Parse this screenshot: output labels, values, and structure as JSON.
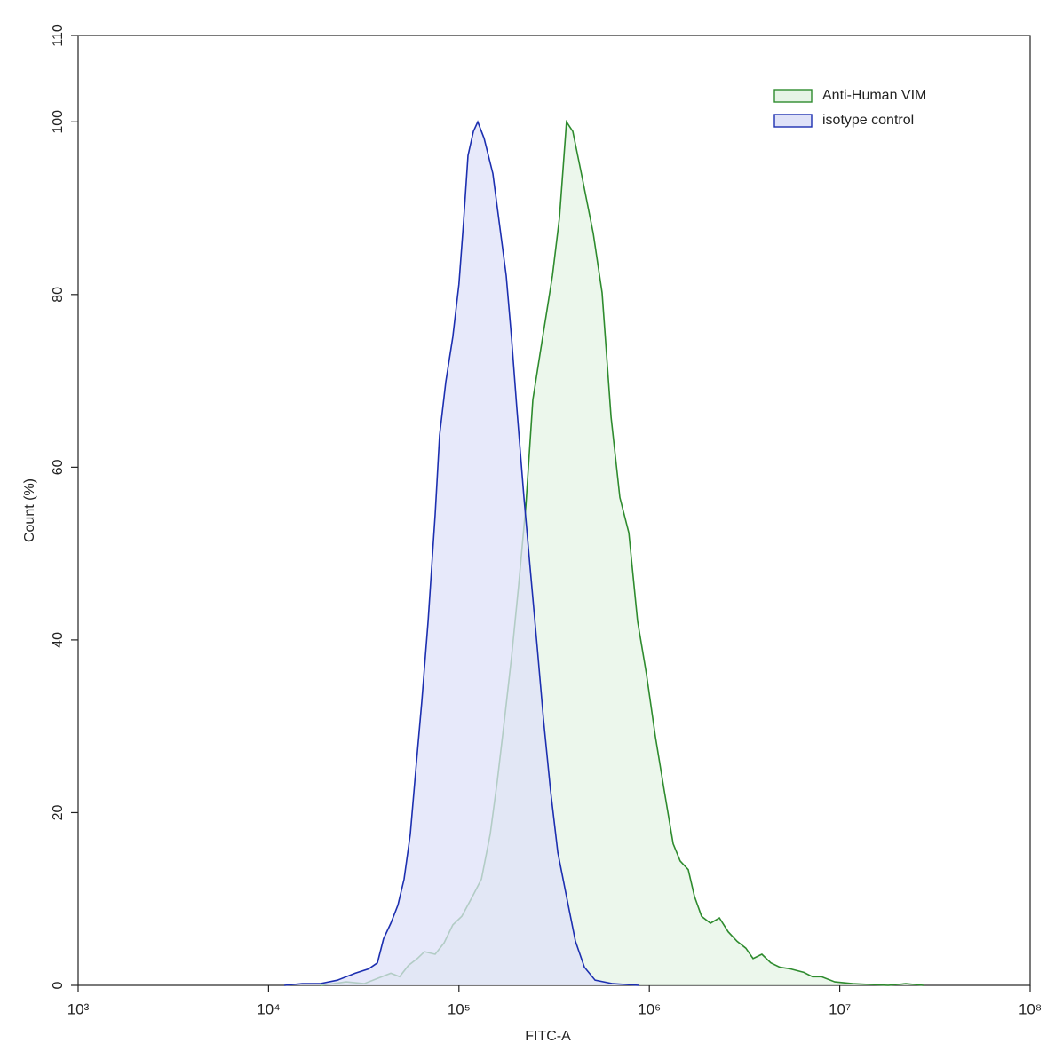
{
  "chart_data": {
    "type": "area",
    "xlabel": "FITC-A",
    "ylabel": "Count  (%)",
    "xscale": "log",
    "xlim": [
      1000,
      100000000
    ],
    "xticks": [
      {
        "value": 1000,
        "label": "10³"
      },
      {
        "value": 10000,
        "label": "10⁴"
      },
      {
        "value": 100000,
        "label": "10⁵"
      },
      {
        "value": 1000000,
        "label": "10⁶"
      },
      {
        "value": 10000000,
        "label": "10⁷"
      },
      {
        "value": 100000000,
        "label": "10⁸"
      }
    ],
    "ylim": [
      0,
      110
    ],
    "yticks": [
      0,
      20,
      40,
      60,
      80,
      100,
      110
    ],
    "legend": "upper right",
    "series": [
      {
        "name": "Anti-Human VIM",
        "color": "#2e8b2e",
        "fill": "#e6f4e6",
        "x": [
          18600,
          25600,
          31800,
          37300,
          43900,
          48800,
          54300,
          60500,
          65900,
          75000,
          83500,
          92900,
          103500,
          117800,
          131200,
          145900,
          158900,
          173400,
          188800,
          205700,
          224400,
          244300,
          266100,
          287100,
          309700,
          337400,
          367300,
          396300,
          441600,
          507000,
          564900,
          629500,
          699800,
          779900,
          867000,
          966100,
          1076000,
          1197000,
          1334000,
          1452000,
          1600000,
          1726000,
          1880000,
          2094000,
          2333000,
          2594000,
          2891000,
          3214000,
          3507000,
          3899000,
          4345000,
          4842000,
          5508000,
          6471000,
          7194000,
          8017000,
          9419000,
          11670000,
          17950000,
          22230000,
          27540000
        ],
        "values": [
          0,
          0.4,
          0.2,
          0.8,
          1.4,
          1.0,
          2.3,
          3.1,
          3.9,
          3.6,
          4.9,
          7.0,
          8.0,
          10.3,
          12.3,
          17.5,
          23.6,
          30.8,
          38.0,
          46.3,
          55.5,
          67.8,
          73.0,
          77.6,
          82.2,
          88.9,
          100,
          98.9,
          93.8,
          87.1,
          80.2,
          65.8,
          56.5,
          52.4,
          42.2,
          36.0,
          28.8,
          22.6,
          16.4,
          14.4,
          13.4,
          10.3,
          8.0,
          7.2,
          7.8,
          6.2,
          5.1,
          4.3,
          3.1,
          3.6,
          2.6,
          2.1,
          1.9,
          1.5,
          1.0,
          1.0,
          0.4,
          0.2,
          0,
          0.2,
          0
        ]
      },
      {
        "name": "isotype control",
        "color": "#1c2fb0",
        "fill": "#dfe2f8",
        "x": [
          12100,
          15000,
          18600,
          23000,
          28500,
          33500,
          37300,
          40200,
          43900,
          47800,
          51500,
          55500,
          59200,
          63800,
          68900,
          75000,
          79100,
          85300,
          92900,
          100000,
          105700,
          111600,
          119100,
          125600,
          135500,
          150700,
          162600,
          177000,
          188800,
          201400,
          219400,
          236600,
          257800,
          278000,
          302700,
          330300,
          367300,
          409300,
          456000,
          518700,
          642700,
          887100
        ],
        "values": [
          0,
          0.2,
          0.2,
          0.6,
          1.4,
          1.9,
          2.6,
          5.4,
          7.2,
          9.3,
          12.3,
          17.5,
          24.7,
          32.9,
          42.2,
          54.5,
          63.7,
          69.9,
          75.1,
          81.2,
          88.4,
          96.1,
          98.9,
          100,
          98.1,
          94.0,
          88.4,
          82.2,
          75.0,
          66.8,
          56.5,
          48.3,
          39.1,
          30.8,
          22.6,
          15.4,
          10.3,
          5.1,
          2.1,
          0.6,
          0.2,
          0
        ]
      }
    ]
  }
}
